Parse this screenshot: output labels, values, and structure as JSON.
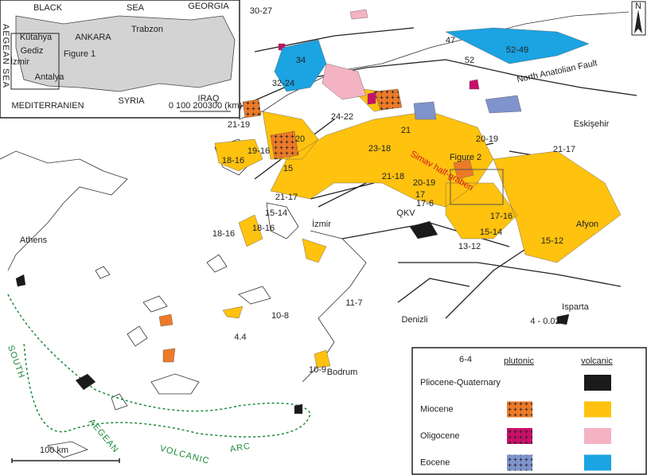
{
  "inset": {
    "labels": [
      "BLACK",
      "SEA",
      "GEORGIA",
      "Kütahya",
      "ANKARA",
      "Trabzon",
      "Gediz",
      "İzmir",
      "Figure 1",
      "Antalya",
      "MEDITERRANIEN",
      "SYRIA",
      "IRAQ",
      "0 100 200300 (km)"
    ],
    "vertical_label": "AEGEAN SEA"
  },
  "map": {
    "labels": [
      "30-27",
      "47",
      "52",
      "52-49",
      "34",
      "32-24",
      "24-22",
      "21-19",
      "19-16",
      "18-16",
      "20",
      "15",
      "23-18",
      "21",
      "21-18",
      "20-19",
      "21-17",
      "Eskişehir",
      "20-19",
      "17",
      "17-6",
      "QKV",
      "17-16",
      "15-14",
      "13-12",
      "15-12",
      "Afyon",
      "15-14",
      "18-16",
      "18-16",
      "21-17",
      "Athens",
      "11-7",
      "10-8",
      "4.4",
      "10-9",
      "Bodrum",
      "Denizli",
      "Isparta",
      "6-4",
      "4 - 0.02"
    ],
    "city_label": "İzmir",
    "fault_label": "North Anatolian Fault",
    "figure_label": "Figure 2",
    "graben_label": "Simav half-graben",
    "arc_labels": [
      "SOUTH",
      "AEGEAN",
      "VOLCANIC",
      "ARC"
    ],
    "scale_label": "100 km",
    "north_label": "N"
  },
  "legend": {
    "headers": [
      "plutonic",
      "volcanic"
    ],
    "rows": [
      {
        "name": "Pliocene-Quaternary",
        "volcanic_color": "#1a1a1a"
      },
      {
        "name": "Miocene",
        "plutonic_color": "#ec7a28",
        "volcanic_color": "#ffc20e"
      },
      {
        "name": "Oligocene",
        "plutonic_color": "#c8106a",
        "volcanic_color": "#f4b3c2"
      },
      {
        "name": "Eocene",
        "plutonic_color": "#7f93cc",
        "volcanic_color": "#1ba3e2"
      }
    ]
  }
}
